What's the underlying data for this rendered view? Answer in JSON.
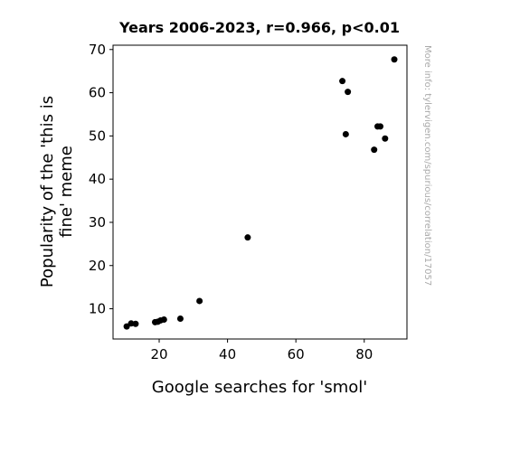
{
  "chart_data": {
    "type": "scatter",
    "title": "Years 2006-2023, r=0.966, p<0.01",
    "xlabel": "Google searches for 'smol'",
    "ylabel_lines": [
      "Popularity of the 'this is",
      "fine' meme"
    ],
    "watermark": "More info: tylervigen.com/spurious/correlation/17057",
    "xlim": [
      6.5,
      92.5
    ],
    "ylim": [
      3.0,
      71.0
    ],
    "xticks": [
      20,
      40,
      60,
      80
    ],
    "xtick_labels": [
      "20",
      "40",
      "60",
      "80"
    ],
    "yticks": [
      10,
      20,
      30,
      40,
      50,
      60,
      70
    ],
    "ytick_labels": [
      "10",
      "20",
      "30",
      "40",
      "50",
      "60",
      "70"
    ],
    "grid": false,
    "point_color": "#000000",
    "points": [
      {
        "x": 10.5,
        "y": 5.9
      },
      {
        "x": 11.8,
        "y": 6.6
      },
      {
        "x": 13.1,
        "y": 6.5
      },
      {
        "x": 18.8,
        "y": 6.9
      },
      {
        "x": 19.6,
        "y": 7.0
      },
      {
        "x": 20.4,
        "y": 7.3
      },
      {
        "x": 21.4,
        "y": 7.5
      },
      {
        "x": 26.2,
        "y": 7.7
      },
      {
        "x": 31.8,
        "y": 11.8
      },
      {
        "x": 45.9,
        "y": 26.5
      },
      {
        "x": 73.6,
        "y": 62.7
      },
      {
        "x": 74.6,
        "y": 50.4
      },
      {
        "x": 75.2,
        "y": 60.2
      },
      {
        "x": 82.9,
        "y": 46.8
      },
      {
        "x": 83.9,
        "y": 52.2
      },
      {
        "x": 84.7,
        "y": 52.2
      },
      {
        "x": 86.1,
        "y": 49.4
      },
      {
        "x": 88.8,
        "y": 67.7
      }
    ]
  }
}
